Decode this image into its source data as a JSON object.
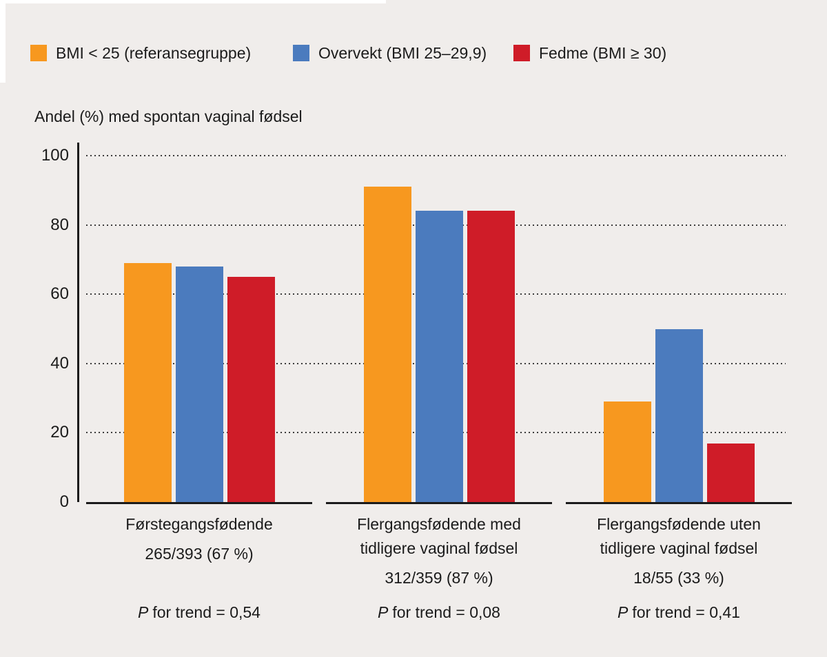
{
  "colors": {
    "background": "#f0edeb",
    "text": "#1b1b1b",
    "orange": "#f7981f",
    "blue": "#4b7bbe",
    "red": "#cf1c28"
  },
  "axis_title": "Andel (%) med spontan vaginal fødsel",
  "chart_data": {
    "type": "bar",
    "title": "",
    "xlabel": "",
    "ylabel": "Andel (%) med spontan vaginal fødsel",
    "ylim": [
      0,
      100
    ],
    "yticks": [
      0,
      20,
      40,
      60,
      80,
      100
    ],
    "grid": "horizontal-dotted",
    "legend_position": "top",
    "categories": [
      "Førstegangsfødende",
      "Flergangsfødende med tidligere vaginal fødsel",
      "Flergangsfødende uten tidligere vaginal fødsel"
    ],
    "category_fractions": [
      "265/393 (67 %)",
      "312/359 (87 %)",
      "18/55 (33 %)"
    ],
    "p_for_trend": [
      "0,54",
      "0,08",
      "0,41"
    ],
    "series": [
      {
        "name": "BMI < 25 (referansegruppe)",
        "color": "#f7981f",
        "values": [
          69,
          91,
          29
        ]
      },
      {
        "name": "Overvekt (BMI 25–29,9)",
        "color": "#4b7bbe",
        "values": [
          68,
          84,
          50
        ]
      },
      {
        "name": "Fedme (BMI ≥ 30)",
        "color": "#cf1c28",
        "values": [
          65,
          84,
          17
        ]
      }
    ]
  },
  "groups": [
    {
      "line1": "Førstegangsfødende",
      "fraction": "265/393 (67 %)",
      "p_label": "P",
      "p_text": "for trend = 0,54"
    },
    {
      "line1": "Flergangsfødende med",
      "line2": "tidligere vaginal fødsel",
      "fraction": "312/359 (87 %)",
      "p_label": "P",
      "p_text": "for trend = 0,08"
    },
    {
      "line1": "Flergangsfødende uten",
      "line2": "tidligere vaginal fødsel",
      "fraction": "18/55 (33 %)",
      "p_label": "P",
      "p_text": "for trend = 0,41"
    }
  ]
}
